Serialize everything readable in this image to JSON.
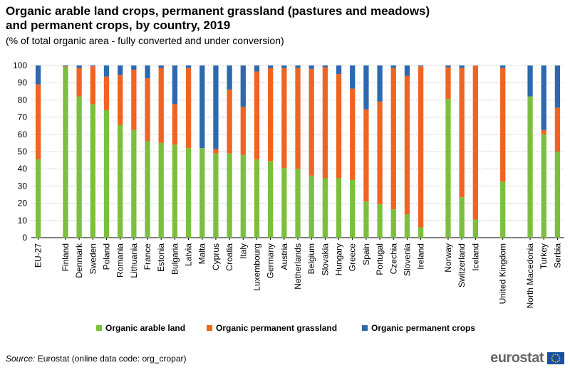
{
  "title": "Organic arable land crops, permanent grassland (pastures and meadows) and permanent crops, by country, 2019",
  "subtitle": "(% of total organic area - fully converted and under conversion)",
  "source_label": "Source:",
  "source_text": "Eurostat (online data code: org_cropar)",
  "logo_text": "eurostat",
  "chart_data": {
    "type": "bar",
    "stacked": true,
    "categories": [
      "EU-27",
      "Finland",
      "Denmark",
      "Sweden",
      "Poland",
      "Romania",
      "Lithuania",
      "France",
      "Estonia",
      "Bulgaria",
      "Latvia",
      "Malta",
      "Cyprus",
      "Croatia",
      "Italy",
      "Luxembourg",
      "Germany",
      "Austria",
      "Netherlands",
      "Belgium",
      "Slovakia",
      "Hungary",
      "Greece",
      "Spain",
      "Portugal",
      "Czechia",
      "Slovenia",
      "Ireland",
      "Norway",
      "Switzerland",
      "Iceland",
      "United Kingdom",
      "North Macedonia",
      "Turkey",
      "Serbia"
    ],
    "group_breaks_after": [
      "EU-27",
      "Ireland",
      "Iceland",
      "United Kingdom"
    ],
    "series": [
      {
        "name": "Organic arable land",
        "color": "#7cbf3f",
        "values": [
          45.5,
          99,
          82,
          77.5,
          74,
          65.5,
          62.5,
          56,
          55,
          54,
          52,
          52,
          49,
          49,
          48,
          45.5,
          44.5,
          40.5,
          40,
          36,
          34.5,
          34.5,
          33.5,
          21,
          19.5,
          16.5,
          13.5,
          6,
          80.5,
          23.5,
          10.5,
          32.5,
          82,
          60,
          50
        ]
      },
      {
        "name": "Organic permanent grassland",
        "color": "#f06423",
        "values": [
          43.5,
          0.5,
          16.5,
          22,
          19.5,
          29,
          35,
          36.5,
          43.5,
          23.5,
          46.5,
          0,
          2.5,
          37,
          28,
          51,
          54,
          58,
          58.5,
          62,
          64.5,
          60.5,
          53,
          53.5,
          59.5,
          82,
          80.5,
          93.5,
          18.5,
          75,
          89.5,
          66,
          0,
          2.5,
          25.5
        ]
      },
      {
        "name": "Organic permanent crops",
        "color": "#2c69b0",
        "values": [
          11,
          0.5,
          1.5,
          0.5,
          6.5,
          5.5,
          2.5,
          7.5,
          1.5,
          22.5,
          1.5,
          48,
          48.5,
          14,
          24,
          3.5,
          1.5,
          1.5,
          1.5,
          2,
          1,
          5,
          13.5,
          25.5,
          21,
          1.5,
          6,
          0.5,
          1,
          1.5,
          0,
          1.5,
          18,
          37.5,
          24.5
        ]
      }
    ],
    "ylim": [
      0,
      100
    ],
    "yticks": [
      0,
      10,
      20,
      30,
      40,
      50,
      60,
      70,
      80,
      90,
      100
    ],
    "grid": true,
    "legend_position": "bottom"
  }
}
